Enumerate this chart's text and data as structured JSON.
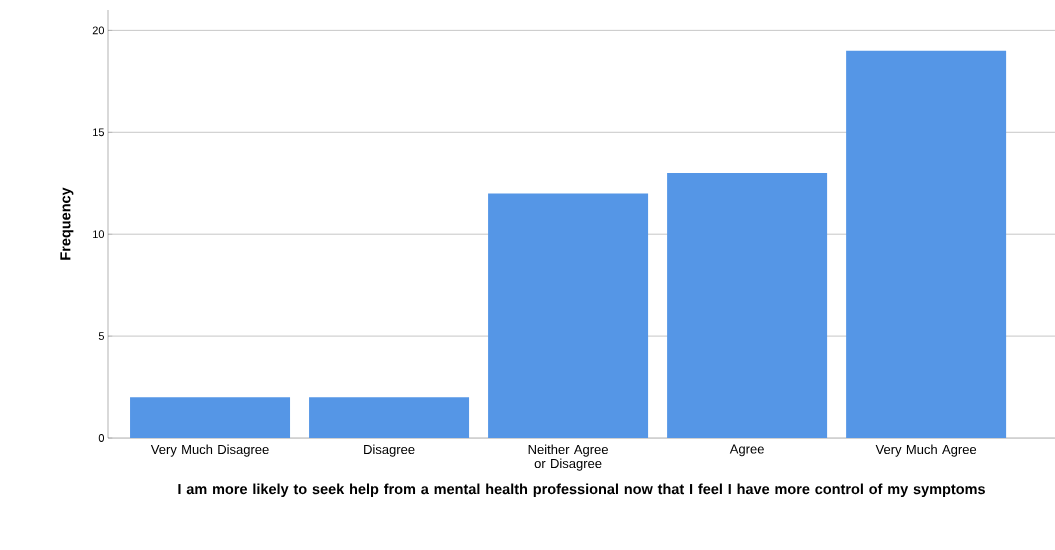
{
  "chart_data": {
    "type": "bar",
    "xlabel": "I am more likely to seek help from a mental health professional now that I feel I have more control of my symptoms",
    "ylabel": "Frequency",
    "categories": [
      "Very Much Disagree",
      "Disagree",
      "Neither Agree or Disagree",
      "Agree",
      "Very Much Agree"
    ],
    "values": [
      2,
      2,
      12,
      13,
      19
    ],
    "color": "#5596e6",
    "ylim": [
      0,
      21
    ],
    "yticks": [
      0,
      5,
      10,
      15,
      20
    ],
    "grid": "y"
  }
}
